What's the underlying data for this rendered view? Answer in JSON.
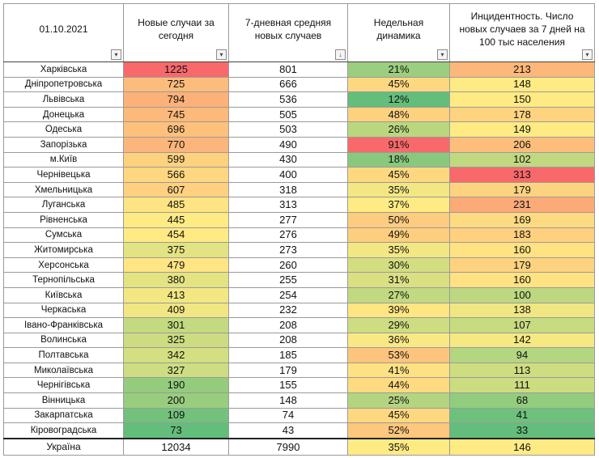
{
  "header": {
    "date": "01.10.2021",
    "col_new_cases": "Новые случаи за сегодня",
    "col_avg7": "7-дневная средняя новых случаев",
    "col_dynamics": "Недельная динамика",
    "col_incidence": "Инцидентность. Число новых случаев за 7 дней на 100 тыс населения",
    "filter_icon": "▾",
    "sort_icon": "↓"
  },
  "colors": {
    "scale_high": "#f8696b",
    "scale_mid": "#ffeb84",
    "scale_low": "#63be7b"
  },
  "rows": [
    {
      "region": "Харківська",
      "new": "1225",
      "avg": "801",
      "dyn": "21%",
      "inc": "213"
    },
    {
      "region": "Дніпропетровська",
      "new": "725",
      "avg": "666",
      "dyn": "45%",
      "inc": "148"
    },
    {
      "region": "Львівська",
      "new": "794",
      "avg": "536",
      "dyn": "12%",
      "inc": "150"
    },
    {
      "region": "Донецька",
      "new": "745",
      "avg": "505",
      "dyn": "48%",
      "inc": "178"
    },
    {
      "region": "Одеська",
      "new": "696",
      "avg": "503",
      "dyn": "26%",
      "inc": "149"
    },
    {
      "region": "Запорізька",
      "new": "770",
      "avg": "490",
      "dyn": "91%",
      "inc": "206"
    },
    {
      "region": "м.Київ",
      "new": "599",
      "avg": "430",
      "dyn": "18%",
      "inc": "102"
    },
    {
      "region": "Чернівецька",
      "new": "566",
      "avg": "400",
      "dyn": "45%",
      "inc": "313"
    },
    {
      "region": "Хмельницька",
      "new": "607",
      "avg": "318",
      "dyn": "35%",
      "inc": "179"
    },
    {
      "region": "Луганська",
      "new": "485",
      "avg": "313",
      "dyn": "37%",
      "inc": "231"
    },
    {
      "region": "Рівненська",
      "new": "445",
      "avg": "277",
      "dyn": "50%",
      "inc": "169"
    },
    {
      "region": "Сумська",
      "new": "454",
      "avg": "276",
      "dyn": "49%",
      "inc": "183"
    },
    {
      "region": "Житомирська",
      "new": "375",
      "avg": "273",
      "dyn": "35%",
      "inc": "160"
    },
    {
      "region": "Херсонська",
      "new": "479",
      "avg": "260",
      "dyn": "30%",
      "inc": "179"
    },
    {
      "region": "Тернопільська",
      "new": "380",
      "avg": "255",
      "dyn": "31%",
      "inc": "160"
    },
    {
      "region": "Київська",
      "new": "413",
      "avg": "254",
      "dyn": "27%",
      "inc": "100"
    },
    {
      "region": "Черкаська",
      "new": "409",
      "avg": "232",
      "dyn": "39%",
      "inc": "138"
    },
    {
      "region": "Івано-Франківська",
      "new": "301",
      "avg": "208",
      "dyn": "29%",
      "inc": "107"
    },
    {
      "region": "Волинська",
      "new": "325",
      "avg": "208",
      "dyn": "36%",
      "inc": "142"
    },
    {
      "region": "Полтавська",
      "new": "342",
      "avg": "185",
      "dyn": "53%",
      "inc": "94"
    },
    {
      "region": "Миколаївська",
      "new": "327",
      "avg": "179",
      "dyn": "41%",
      "inc": "113"
    },
    {
      "region": "Чернігівська",
      "new": "190",
      "avg": "155",
      "dyn": "44%",
      "inc": "111"
    },
    {
      "region": "Вінницька",
      "new": "200",
      "avg": "148",
      "dyn": "25%",
      "inc": "68"
    },
    {
      "region": "Закарпатська",
      "new": "109",
      "avg": "74",
      "dyn": "45%",
      "inc": "41"
    },
    {
      "region": "Кіровоградська",
      "new": "73",
      "avg": "43",
      "dyn": "52%",
      "inc": "33"
    }
  ],
  "total": {
    "region": "Україна",
    "new": "12034",
    "avg": "7990",
    "dyn": "35%",
    "inc": "146"
  }
}
